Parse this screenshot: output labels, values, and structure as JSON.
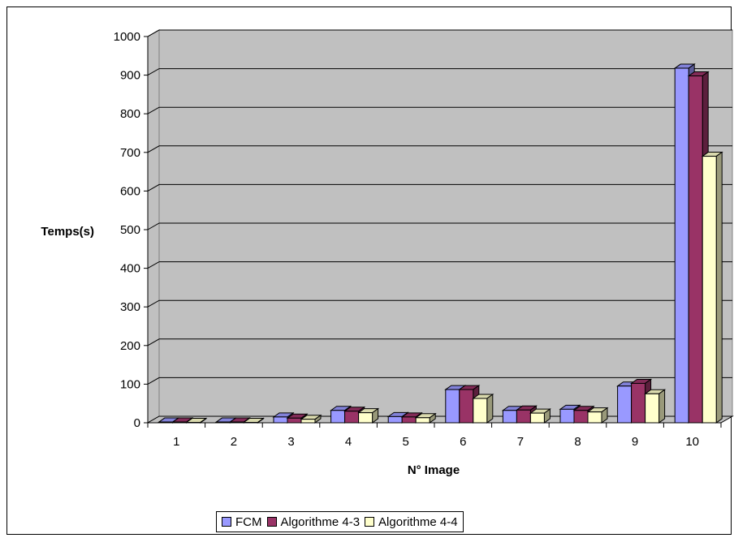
{
  "chart_data": {
    "type": "bar",
    "title": "",
    "xlabel": "N° Image",
    "ylabel": "Temps(s)",
    "ylim": [
      0,
      1000
    ],
    "yticks": [
      "0",
      "100",
      "200",
      "300",
      "400",
      "500",
      "600",
      "700",
      "800",
      "900",
      "1000"
    ],
    "categories": [
      "1",
      "2",
      "3",
      "4",
      "5",
      "6",
      "7",
      "8",
      "9",
      "10"
    ],
    "series": [
      {
        "name": "FCM",
        "color": "#9999ff",
        "values": [
          2,
          2,
          15,
          32,
          16,
          86,
          32,
          35,
          95,
          918
        ]
      },
      {
        "name": "Algorithme 4-3",
        "color": "#993366",
        "values": [
          2,
          2,
          12,
          30,
          15,
          86,
          33,
          32,
          102,
          898
        ]
      },
      {
        "name": "Algorithme 4-4",
        "color": "#ffffcc",
        "values": [
          1,
          1,
          9,
          26,
          13,
          63,
          25,
          28,
          75,
          690
        ]
      }
    ],
    "grid": true,
    "legend_position": "bottom"
  }
}
